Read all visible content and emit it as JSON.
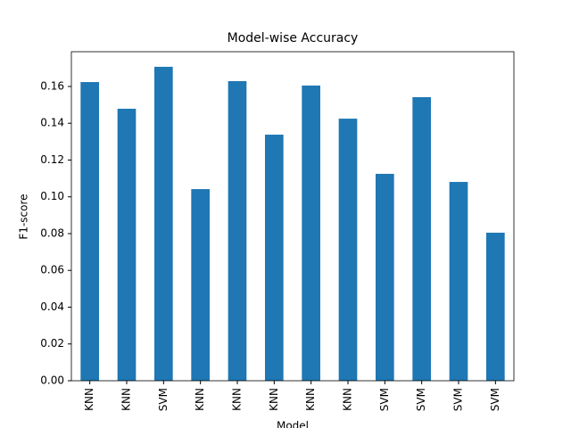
{
  "chart_data": {
    "type": "bar",
    "title": "Model-wise Accuracy",
    "x_label": "Model",
    "y_label": "F1-score",
    "categories": [
      "KNN",
      "KNN",
      "SVM",
      "KNN",
      "KNN",
      "KNN",
      "KNN",
      "KNN",
      "SVM",
      "SVM",
      "SVM",
      "SVM"
    ],
    "values": [
      0.1624,
      0.1479,
      0.1707,
      0.1042,
      0.1629,
      0.1338,
      0.1605,
      0.1425,
      0.1125,
      0.1542,
      0.1081,
      0.0805
    ],
    "color": "#1f77b4",
    "ylim": [
      0,
      0.1789
    ],
    "yticks": [
      {
        "value": 0,
        "label": "0.00"
      },
      {
        "value": 0.02,
        "label": "0.02"
      },
      {
        "value": 0.04,
        "label": "0.04"
      },
      {
        "value": 0.06,
        "label": "0.06"
      },
      {
        "value": 0.08,
        "label": "0.08"
      },
      {
        "value": 0.1,
        "label": "0.10"
      },
      {
        "value": 0.12,
        "label": "0.12"
      },
      {
        "value": 0.14,
        "label": "0.14"
      },
      {
        "value": 0.16,
        "label": "0.16"
      }
    ],
    "grid": false
  }
}
